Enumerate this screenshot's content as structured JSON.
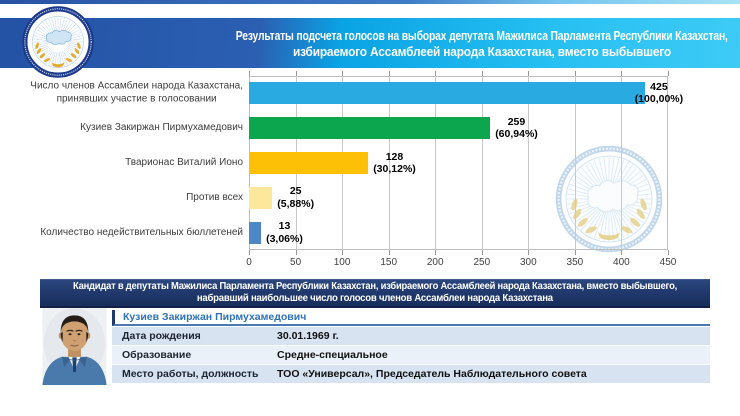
{
  "header": {
    "title_line1": "Результаты  подсчета голосов на выборах депутата Мажилиса Парламента Республики Казахстан,",
    "title_line2": "избираемого Ассамблеей народа Казахстана, вместо выбывшего"
  },
  "chart_data": {
    "type": "bar",
    "orientation": "horizontal",
    "categories": [
      "Число членов Ассамблеи народа Казахстана,\nпринявших участие в голосовании",
      "Кузиев Закиржан Пирмухамедович",
      "Тварионас Виталий Ионо",
      "Против всех",
      "Количество недействительных бюллетеней"
    ],
    "values": [
      425,
      259,
      128,
      25,
      13
    ],
    "percent_labels": [
      "(100,00%)",
      "(60,94%)",
      "(30,12%)",
      "(5,88%)",
      "(3,06%)"
    ],
    "bar_colors": [
      "#29abe2",
      "#0ca64f",
      "#fdc006",
      "#fce79a",
      "#4e87c6"
    ],
    "xlim": [
      0,
      450
    ],
    "x_ticks": [
      0,
      50,
      100,
      150,
      200,
      250,
      300,
      350,
      400,
      450
    ],
    "grid": true,
    "legend": false
  },
  "candidate_section": {
    "header_line1": "Кандидат в депутаты Мажилиса Парламента Республики Казахстан, избираемого Ассамблеей народа Казахстана, вместо выбывшего,",
    "header_line2": "набравший наибольшее число голосов членов Ассамблеи народа Казахстана",
    "name": "Кузиев Закиржан Пирмухамедович",
    "rows": [
      {
        "label": "Дата рождения",
        "value": "30.01.1969 г."
      },
      {
        "label": "Образование",
        "value": "Средне-специальное"
      },
      {
        "label": "Место работы, должность",
        "value": "ТОО «Универсал», Председатель Наблюдательного совета"
      }
    ]
  },
  "colors": {
    "header_gradient_left": "#2452a4",
    "header_gradient_right": "#3ecbf6",
    "candidate_band": "#1a3163",
    "name_text": "#2e74b5",
    "row_shade": "#d7e3f1"
  }
}
